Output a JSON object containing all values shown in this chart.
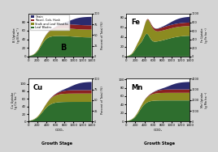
{
  "colors": {
    "grain": "#2b2b6e",
    "tassel_cob_husk": "#8b2020",
    "stalk_leaf_sheath": "#8b8b20",
    "leaf_blades": "#2e6e2e"
  },
  "legend_labels": [
    "Grain",
    "Tassel, Cob, Husk",
    "Stalk and Leaf Sheaths",
    "Leaf Blades"
  ],
  "panel_labels": [
    "B",
    "Fe",
    "Cu",
    "Mn"
  ],
  "bg_color": "#d4d4d4",
  "panel_bg": "#ffffff"
}
